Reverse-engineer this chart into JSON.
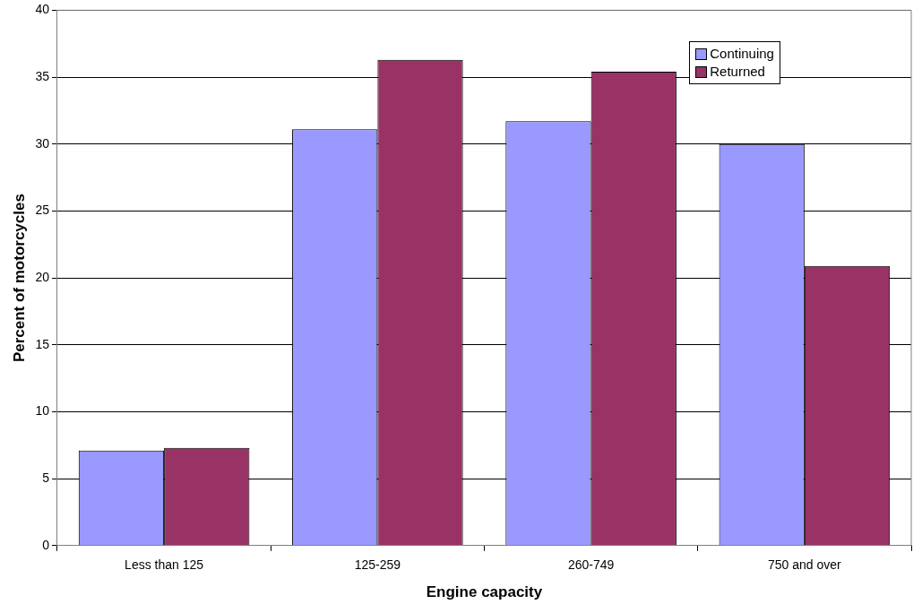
{
  "chart_data": {
    "type": "bar",
    "xlabel": "Engine capacity",
    "ylabel": "Percent of motorcycles",
    "categories": [
      "Less than 125",
      "125-259",
      "260-749",
      "750 and over"
    ],
    "series": [
      {
        "name": "Continuing",
        "color": "#9999ff",
        "values": [
          7.1,
          31.1,
          31.7,
          30.0
        ]
      },
      {
        "name": "Returned",
        "color": "#993366",
        "values": [
          7.3,
          36.3,
          35.4,
          20.9
        ]
      }
    ],
    "ylim": [
      0,
      40
    ],
    "yticks": [
      0,
      5,
      10,
      15,
      20,
      25,
      30,
      35,
      40
    ],
    "grid": "y",
    "legend": "top right"
  }
}
